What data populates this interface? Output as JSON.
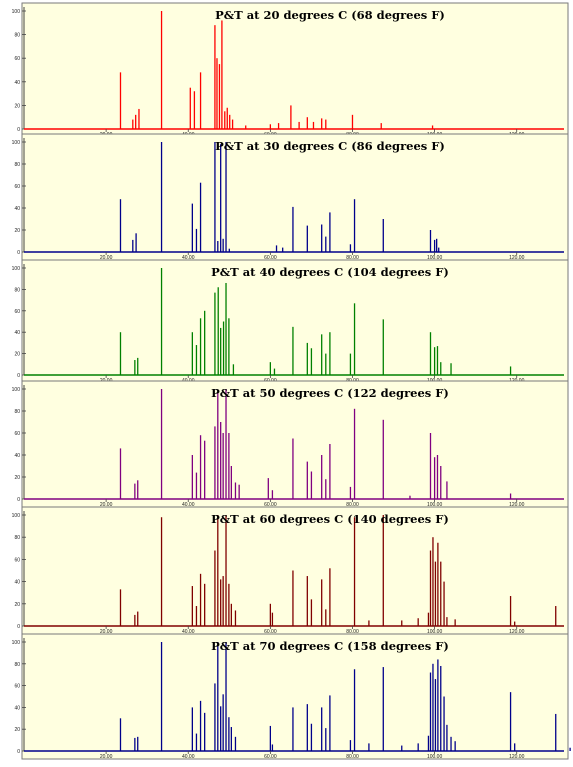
{
  "chart_data": [
    {
      "type": "line",
      "title": "P&T at 20 degrees C (68 degrees F)",
      "color": "#ff0000",
      "xlabel": "",
      "ylabel": "",
      "xlim": [
        0,
        132
      ],
      "ylim": [
        0,
        100
      ],
      "x_ticks": [
        "20.00",
        "40.00",
        "60.00",
        "80.00",
        "100.00",
        "120.00"
      ],
      "y_ticks": [
        "100",
        "80",
        "60",
        "40",
        "20",
        "0"
      ],
      "peaks": [
        [
          23.5,
          48
        ],
        [
          26.5,
          8
        ],
        [
          27.2,
          12
        ],
        [
          28,
          17
        ],
        [
          33.5,
          100
        ],
        [
          40.5,
          35
        ],
        [
          41.5,
          32
        ],
        [
          43,
          48
        ],
        [
          46.5,
          88
        ],
        [
          47,
          60
        ],
        [
          47.6,
          55
        ],
        [
          48.2,
          92
        ],
        [
          48.9,
          15
        ],
        [
          49.5,
          18
        ],
        [
          50.1,
          12
        ],
        [
          50.8,
          8
        ],
        [
          54,
          3
        ],
        [
          60,
          4
        ],
        [
          62,
          5
        ],
        [
          65,
          20
        ],
        [
          67,
          6
        ],
        [
          69,
          10
        ],
        [
          70.5,
          6
        ],
        [
          72.5,
          9
        ],
        [
          73.5,
          8
        ],
        [
          80,
          12
        ],
        [
          87,
          5
        ],
        [
          99.5,
          3
        ]
      ]
    },
    {
      "type": "line",
      "title": "P&T at 30 degrees C (86 degrees F)",
      "color": "#00008b",
      "xlabel": "",
      "ylabel": "",
      "xlim": [
        0,
        132
      ],
      "ylim": [
        0,
        100
      ],
      "x_ticks": [
        "20.00",
        "40.00",
        "60.00",
        "80.00",
        "100.00",
        "120.00"
      ],
      "y_ticks": [
        "100",
        "80",
        "60",
        "40",
        "20",
        "0"
      ],
      "peaks": [
        [
          23.5,
          48
        ],
        [
          26.5,
          11
        ],
        [
          27.3,
          17
        ],
        [
          33.5,
          100
        ],
        [
          41,
          44
        ],
        [
          42,
          21
        ],
        [
          43,
          63
        ],
        [
          46.5,
          100
        ],
        [
          47.2,
          10
        ],
        [
          47.9,
          98
        ],
        [
          48.5,
          12
        ],
        [
          49.2,
          100
        ],
        [
          50,
          3
        ],
        [
          61.5,
          6
        ],
        [
          63,
          4
        ],
        [
          65.5,
          41
        ],
        [
          69,
          24
        ],
        [
          72.5,
          25
        ],
        [
          73.5,
          14
        ],
        [
          74.5,
          36
        ],
        [
          79.5,
          7
        ],
        [
          80.5,
          48
        ],
        [
          87.5,
          30
        ],
        [
          99,
          20
        ],
        [
          100,
          11
        ],
        [
          100.5,
          12
        ],
        [
          101,
          4
        ]
      ]
    },
    {
      "type": "line",
      "title": "P&T at 40 degrees C (104 degrees F)",
      "color": "#008000",
      "xlabel": "",
      "ylabel": "",
      "xlim": [
        0,
        132
      ],
      "ylim": [
        0,
        100
      ],
      "x_ticks": [
        "20.00",
        "40.00",
        "60.00",
        "80.00",
        "100.00",
        "120.00"
      ],
      "y_ticks": [
        "100",
        "80",
        "60",
        "40",
        "20",
        "0"
      ],
      "peaks": [
        [
          23.5,
          40
        ],
        [
          27,
          14
        ],
        [
          27.7,
          16
        ],
        [
          33.5,
          100
        ],
        [
          41,
          40
        ],
        [
          42,
          28
        ],
        [
          43,
          53
        ],
        [
          44,
          60
        ],
        [
          46.5,
          77
        ],
        [
          47.3,
          82
        ],
        [
          47.9,
          44
        ],
        [
          48.6,
          50
        ],
        [
          49.2,
          86
        ],
        [
          49.9,
          53
        ],
        [
          51,
          10
        ],
        [
          60,
          12
        ],
        [
          61,
          6
        ],
        [
          65.5,
          45
        ],
        [
          69,
          30
        ],
        [
          70,
          25
        ],
        [
          72.5,
          38
        ],
        [
          73.5,
          20
        ],
        [
          74.5,
          40
        ],
        [
          79.5,
          20
        ],
        [
          80.5,
          67
        ],
        [
          87.5,
          52
        ],
        [
          99,
          40
        ],
        [
          100,
          26
        ],
        [
          100.7,
          27
        ],
        [
          101.5,
          12
        ],
        [
          104,
          11
        ],
        [
          118.5,
          8
        ]
      ]
    },
    {
      "type": "line",
      "title": "P&T at 50 degrees C (122 degrees F)",
      "color": "#800080",
      "xlabel": "",
      "ylabel": "",
      "xlim": [
        0,
        132
      ],
      "ylim": [
        0,
        100
      ],
      "x_ticks": [
        "20.00",
        "40.00",
        "60.00",
        "80.00",
        "100.00",
        "120.00"
      ],
      "y_ticks": [
        "100",
        "80",
        "60",
        "40",
        "20",
        "0"
      ],
      "peaks": [
        [
          23.5,
          46
        ],
        [
          27,
          14
        ],
        [
          27.7,
          17
        ],
        [
          33.5,
          100
        ],
        [
          41,
          40
        ],
        [
          42,
          24
        ],
        [
          43,
          58
        ],
        [
          44,
          53
        ],
        [
          46.5,
          66
        ],
        [
          47.2,
          97
        ],
        [
          47.9,
          70
        ],
        [
          48.5,
          60
        ],
        [
          49.2,
          100
        ],
        [
          49.9,
          60
        ],
        [
          50.5,
          30
        ],
        [
          51.5,
          15
        ],
        [
          52.4,
          13
        ],
        [
          59.5,
          19
        ],
        [
          60.5,
          8
        ],
        [
          65.5,
          55
        ],
        [
          69,
          34
        ],
        [
          70,
          25
        ],
        [
          72.5,
          40
        ],
        [
          73.5,
          18
        ],
        [
          74.5,
          50
        ],
        [
          79.5,
          11
        ],
        [
          80.5,
          82
        ],
        [
          87.5,
          72
        ],
        [
          94,
          3
        ],
        [
          99,
          60
        ],
        [
          100,
          38
        ],
        [
          100.7,
          40
        ],
        [
          101.5,
          30
        ],
        [
          103,
          16
        ],
        [
          118.5,
          5
        ]
      ]
    },
    {
      "type": "line",
      "title": "P&T at 60 degrees C (140 degrees F)",
      "color": "#800000",
      "xlabel": "",
      "ylabel": "",
      "xlim": [
        0,
        132
      ],
      "ylim": [
        0,
        100
      ],
      "x_ticks": [
        "20.00",
        "40.00",
        "60.00",
        "80.00",
        "100.00",
        "120.00"
      ],
      "y_ticks": [
        "100",
        "80",
        "60",
        "40",
        "20",
        "0"
      ],
      "peaks": [
        [
          23.5,
          33
        ],
        [
          27,
          10
        ],
        [
          27.7,
          13
        ],
        [
          33.5,
          98
        ],
        [
          41,
          36
        ],
        [
          42,
          18
        ],
        [
          43,
          47
        ],
        [
          44,
          38
        ],
        [
          46.5,
          68
        ],
        [
          47.2,
          100
        ],
        [
          47.9,
          42
        ],
        [
          48.5,
          45
        ],
        [
          49.2,
          100
        ],
        [
          49.9,
          38
        ],
        [
          50.5,
          20
        ],
        [
          51.5,
          14
        ],
        [
          60,
          20
        ],
        [
          60.5,
          12
        ],
        [
          65.5,
          50
        ],
        [
          69,
          45
        ],
        [
          70,
          24
        ],
        [
          72.5,
          42
        ],
        [
          73.5,
          15
        ],
        [
          74.5,
          52
        ],
        [
          80.5,
          98
        ],
        [
          84,
          5
        ],
        [
          87.5,
          100
        ],
        [
          92,
          5
        ],
        [
          96,
          7
        ],
        [
          98.5,
          12
        ],
        [
          99,
          68
        ],
        [
          99.6,
          80
        ],
        [
          100.2,
          58
        ],
        [
          100.8,
          75
        ],
        [
          101.5,
          58
        ],
        [
          102.3,
          40
        ],
        [
          103,
          8
        ],
        [
          105,
          6
        ],
        [
          118.5,
          27
        ],
        [
          119.5,
          4
        ],
        [
          129.5,
          18
        ]
      ]
    },
    {
      "type": "line",
      "title": "P&T at 70 degrees C (158 degrees F)",
      "color": "#00008b",
      "xlabel": "",
      "ylabel": "",
      "xlim": [
        0,
        132
      ],
      "ylim": [
        0,
        100
      ],
      "x_ticks": [
        "20.00",
        "40.00",
        "60.00",
        "80.00",
        "100.00",
        "120.00"
      ],
      "y_ticks": [
        "100",
        "80",
        "60",
        "40",
        "20",
        "0"
      ],
      "peaks": [
        [
          23.5,
          30
        ],
        [
          27,
          12
        ],
        [
          27.7,
          13
        ],
        [
          33.5,
          100
        ],
        [
          41,
          40
        ],
        [
          42,
          16
        ],
        [
          43,
          46
        ],
        [
          44,
          35
        ],
        [
          46.5,
          62
        ],
        [
          47.2,
          100
        ],
        [
          47.9,
          41
        ],
        [
          48.5,
          52
        ],
        [
          49.2,
          100
        ],
        [
          49.9,
          31
        ],
        [
          50.5,
          22
        ],
        [
          51.5,
          13
        ],
        [
          60,
          23
        ],
        [
          60.5,
          6
        ],
        [
          65.5,
          40
        ],
        [
          69,
          43
        ],
        [
          70,
          25
        ],
        [
          72.5,
          40
        ],
        [
          73.5,
          21
        ],
        [
          74.5,
          51
        ],
        [
          79.5,
          10
        ],
        [
          80.5,
          75
        ],
        [
          84,
          7
        ],
        [
          87.5,
          77
        ],
        [
          92,
          5
        ],
        [
          96,
          7
        ],
        [
          98.5,
          14
        ],
        [
          99,
          72
        ],
        [
          99.6,
          80
        ],
        [
          100.2,
          66
        ],
        [
          100.8,
          84
        ],
        [
          101.5,
          78
        ],
        [
          102.3,
          50
        ],
        [
          103,
          24
        ],
        [
          104,
          13
        ],
        [
          105,
          9
        ],
        [
          118.5,
          54
        ],
        [
          119.5,
          7
        ],
        [
          129.5,
          34
        ],
        [
          133,
          3
        ]
      ]
    }
  ]
}
